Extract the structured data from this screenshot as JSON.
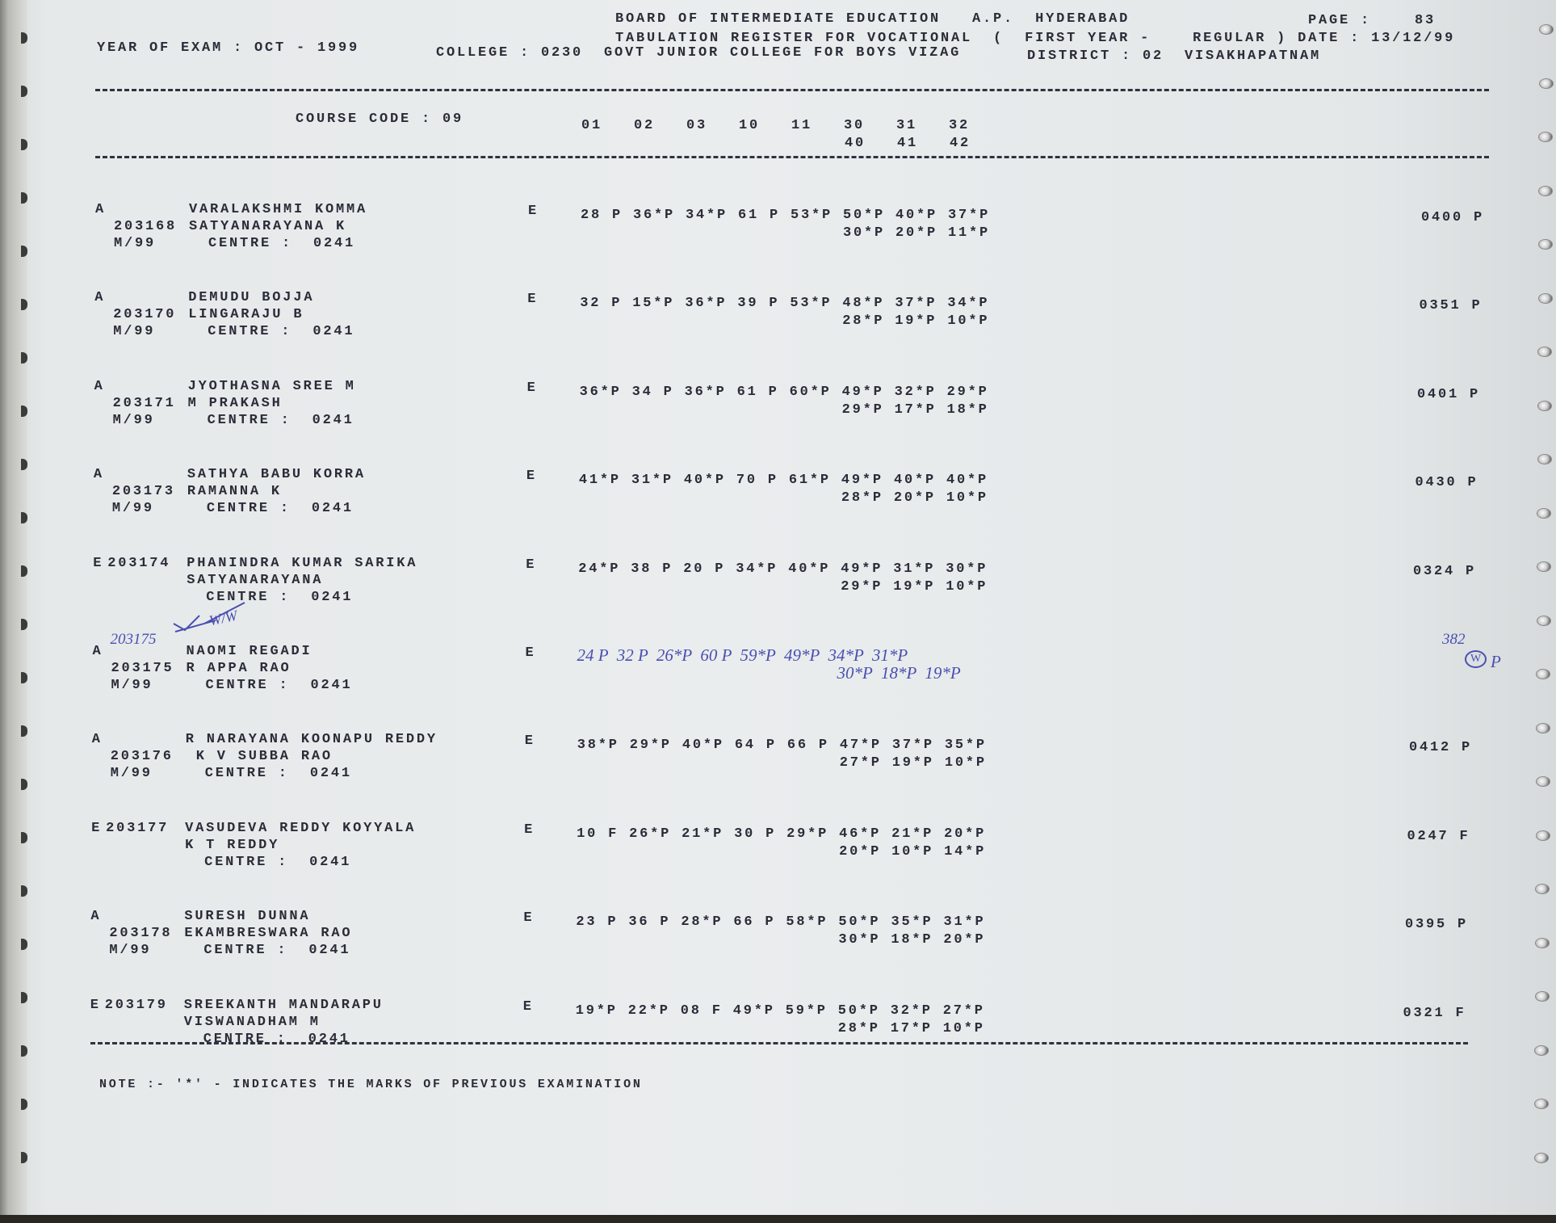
{
  "header": {
    "board": "BOARD OF INTERMEDIATE EDUCATION   A.P.  HYDERABAD",
    "page_label": "PAGE :",
    "page_number": "83",
    "register": "TABULATION REGISTER FOR VOCATIONAL  (  FIRST YEAR -    REGULAR ) DATE : 13/12/99",
    "year_of_exam": "YEAR OF EXAM : OCT - 1999",
    "college": "COLLEGE : 0230  GOVT JUNIOR COLLEGE FOR BOYS VIZAG",
    "district": "DISTRICT : 02  VISAKHAPATNAM"
  },
  "columns": {
    "course_code": "COURSE CODE : 09",
    "codes_line1": "01   02   03   10   11   30   31   32",
    "codes_line2": "40   41   42"
  },
  "rows": [
    {
      "flag": "A",
      "roll": "203168",
      "session": "M/99",
      "name": "VARALAKSHMI KOMMA",
      "parent": "SATYANARAYANA K",
      "centre": "CENTRE :  0241",
      "stream": "E",
      "marks1": "28 P 36*P 34*P 61 P 53*P 50*P 40*P 37*P",
      "marks2": "30*P 20*P 11*P",
      "total": "0400",
      "result": "P"
    },
    {
      "flag": "A",
      "roll": "203170",
      "session": "M/99",
      "name": "DEMUDU BOJJA",
      "parent": "LINGARAJU B",
      "centre": "CENTRE :  0241",
      "stream": "E",
      "marks1": "32 P 15*P 36*P 39 P 53*P 48*P 37*P 34*P",
      "marks2": "28*P 19*P 10*P",
      "total": "0351",
      "result": "P"
    },
    {
      "flag": "A",
      "roll": "203171",
      "session": "M/99",
      "name": "JYOTHASNA SREE M",
      "parent": "M PRAKASH",
      "centre": "CENTRE :  0241",
      "stream": "E",
      "marks1": "36*P 34 P 36*P 61 P 60*P 49*P 32*P 29*P",
      "marks2": "29*P 17*P 18*P",
      "total": "0401",
      "result": "P"
    },
    {
      "flag": "A",
      "roll": "203173",
      "session": "M/99",
      "name": "SATHYA BABU KORRA",
      "parent": "RAMANNA K",
      "centre": "CENTRE :  0241",
      "stream": "E",
      "marks1": "41*P 31*P 40*P 70 P 61*P 49*P 40*P 40*P",
      "marks2": "28*P 20*P 10*P",
      "total": "0430",
      "result": "P"
    },
    {
      "flag": "E",
      "roll": "203174",
      "session": "",
      "name": "PHANINDRA KUMAR SARIKA",
      "parent": "SATYANARAYANA",
      "centre": "CENTRE :  0241",
      "stream": "E",
      "marks1": "24*P 38 P 20 P 34*P 40*P 49*P 31*P 30*P",
      "marks2": "29*P 19*P 10*P",
      "total": "0324",
      "result": "P"
    },
    {
      "flag": "A",
      "roll": "203175",
      "session": "M/99",
      "name": "NAOMI REGADI",
      "parent": "R APPA RAO",
      "centre": "CENTRE :  0241",
      "stream": "E",
      "marks1": "",
      "marks2": "",
      "total": "",
      "result": "",
      "handwritten": {
        "roll": "203175",
        "initials": "W/W",
        "marks1": "24 P  32 P  26*P  60 P  59*P  49*P  34*P  31*P",
        "marks2": "30*P  18*P  19*P",
        "total": "382",
        "result": "W",
        "result2": "P"
      }
    },
    {
      "flag": "A",
      "roll": "203176",
      "session": "M/99",
      "name": "R NARAYANA KOONAPU REDDY",
      "parent": " K V SUBBA RAO",
      "centre": "CENTRE :  0241",
      "stream": "E",
      "marks1": "38*P 29*P 40*P 64 P 66 P 47*P 37*P 35*P",
      "marks2": "27*P 19*P 10*P",
      "total": "0412",
      "result": "P"
    },
    {
      "flag": "E",
      "roll": "203177",
      "session": "",
      "name": "VASUDEVA REDDY KOYYALA",
      "parent": "K T REDDY",
      "centre": "CENTRE :  0241",
      "stream": "E",
      "marks1": "10 F 26*P 21*P 30 P 29*P 46*P 21*P 20*P",
      "marks2": "20*P 10*P 14*P",
      "total": "0247",
      "result": "F"
    },
    {
      "flag": "A",
      "roll": "203178",
      "session": "M/99",
      "name": "SURESH DUNNA",
      "parent": "EKAMBRESWARA RAO",
      "centre": "CENTRE :  0241",
      "stream": "E",
      "marks1": "23 P 36 P 28*P 66 P 58*P 50*P 35*P 31*P",
      "marks2": "30*P 18*P 20*P",
      "total": "0395",
      "result": "P"
    },
    {
      "flag": "E",
      "roll": "203179",
      "session": "",
      "name": "SREEKANTH MANDARAPU",
      "parent": "VISWANADHAM M",
      "centre": "CENTRE :  0241",
      "stream": "E",
      "marks1": "19*P 22*P 08 F 49*P 59*P 50*P 32*P 27*P",
      "marks2": "28*P 17*P 10*P",
      "total": "0321",
      "result": "F"
    }
  ],
  "footer": {
    "note": "NOTE :- '*' - INDICATES THE MARKS OF PREVIOUS EXAMINATION"
  },
  "colors": {
    "ink": "#2b2c38",
    "pen": "#4a4fb0",
    "paper": "#e8ebec"
  }
}
